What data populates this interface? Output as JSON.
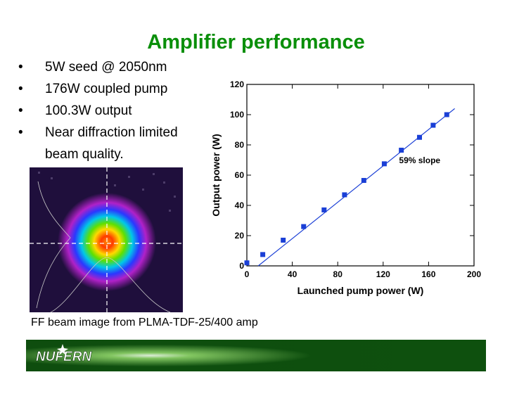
{
  "slide": {
    "title": "Amplifier performance",
    "bullets": [
      {
        "marker": "•",
        "text": "5W seed @ 2050nm"
      },
      {
        "marker": "•",
        "text": "176W  coupled pump"
      },
      {
        "marker": "•",
        "text": "100.3W output"
      },
      {
        "marker": "•",
        "text": "Near diffraction limited",
        "continuation": "beam quality."
      }
    ],
    "caption": "FF beam image from PLMA-TDF-25/400 amp",
    "logo_text": "NUFERN"
  },
  "colors": {
    "title": "#0a8f0a",
    "marker": "#1a3fd6",
    "fit_line": "#1a3fd6",
    "footer": "#0e4f0e",
    "beam_bg": "#1f0f3c"
  },
  "chart_data": {
    "type": "scatter",
    "xlabel": "Launched pump power (W)",
    "ylabel": "Output power (W)",
    "xlim": [
      0,
      200
    ],
    "ylim": [
      0,
      120
    ],
    "xticks": [
      0,
      40,
      80,
      120,
      160,
      200
    ],
    "yticks": [
      0,
      20,
      40,
      60,
      80,
      100,
      120
    ],
    "grid": false,
    "series": [
      {
        "x": [
          0,
          14,
          32,
          50,
          68,
          86,
          103,
          121,
          136,
          152,
          164,
          176
        ],
        "y": [
          2,
          7.5,
          17,
          26,
          37,
          47,
          56.5,
          67.5,
          76.5,
          85,
          93,
          100
        ]
      }
    ],
    "fit_line": {
      "x": [
        10,
        183
      ],
      "y": [
        0,
        104
      ]
    },
    "annotation": "59% slope"
  }
}
